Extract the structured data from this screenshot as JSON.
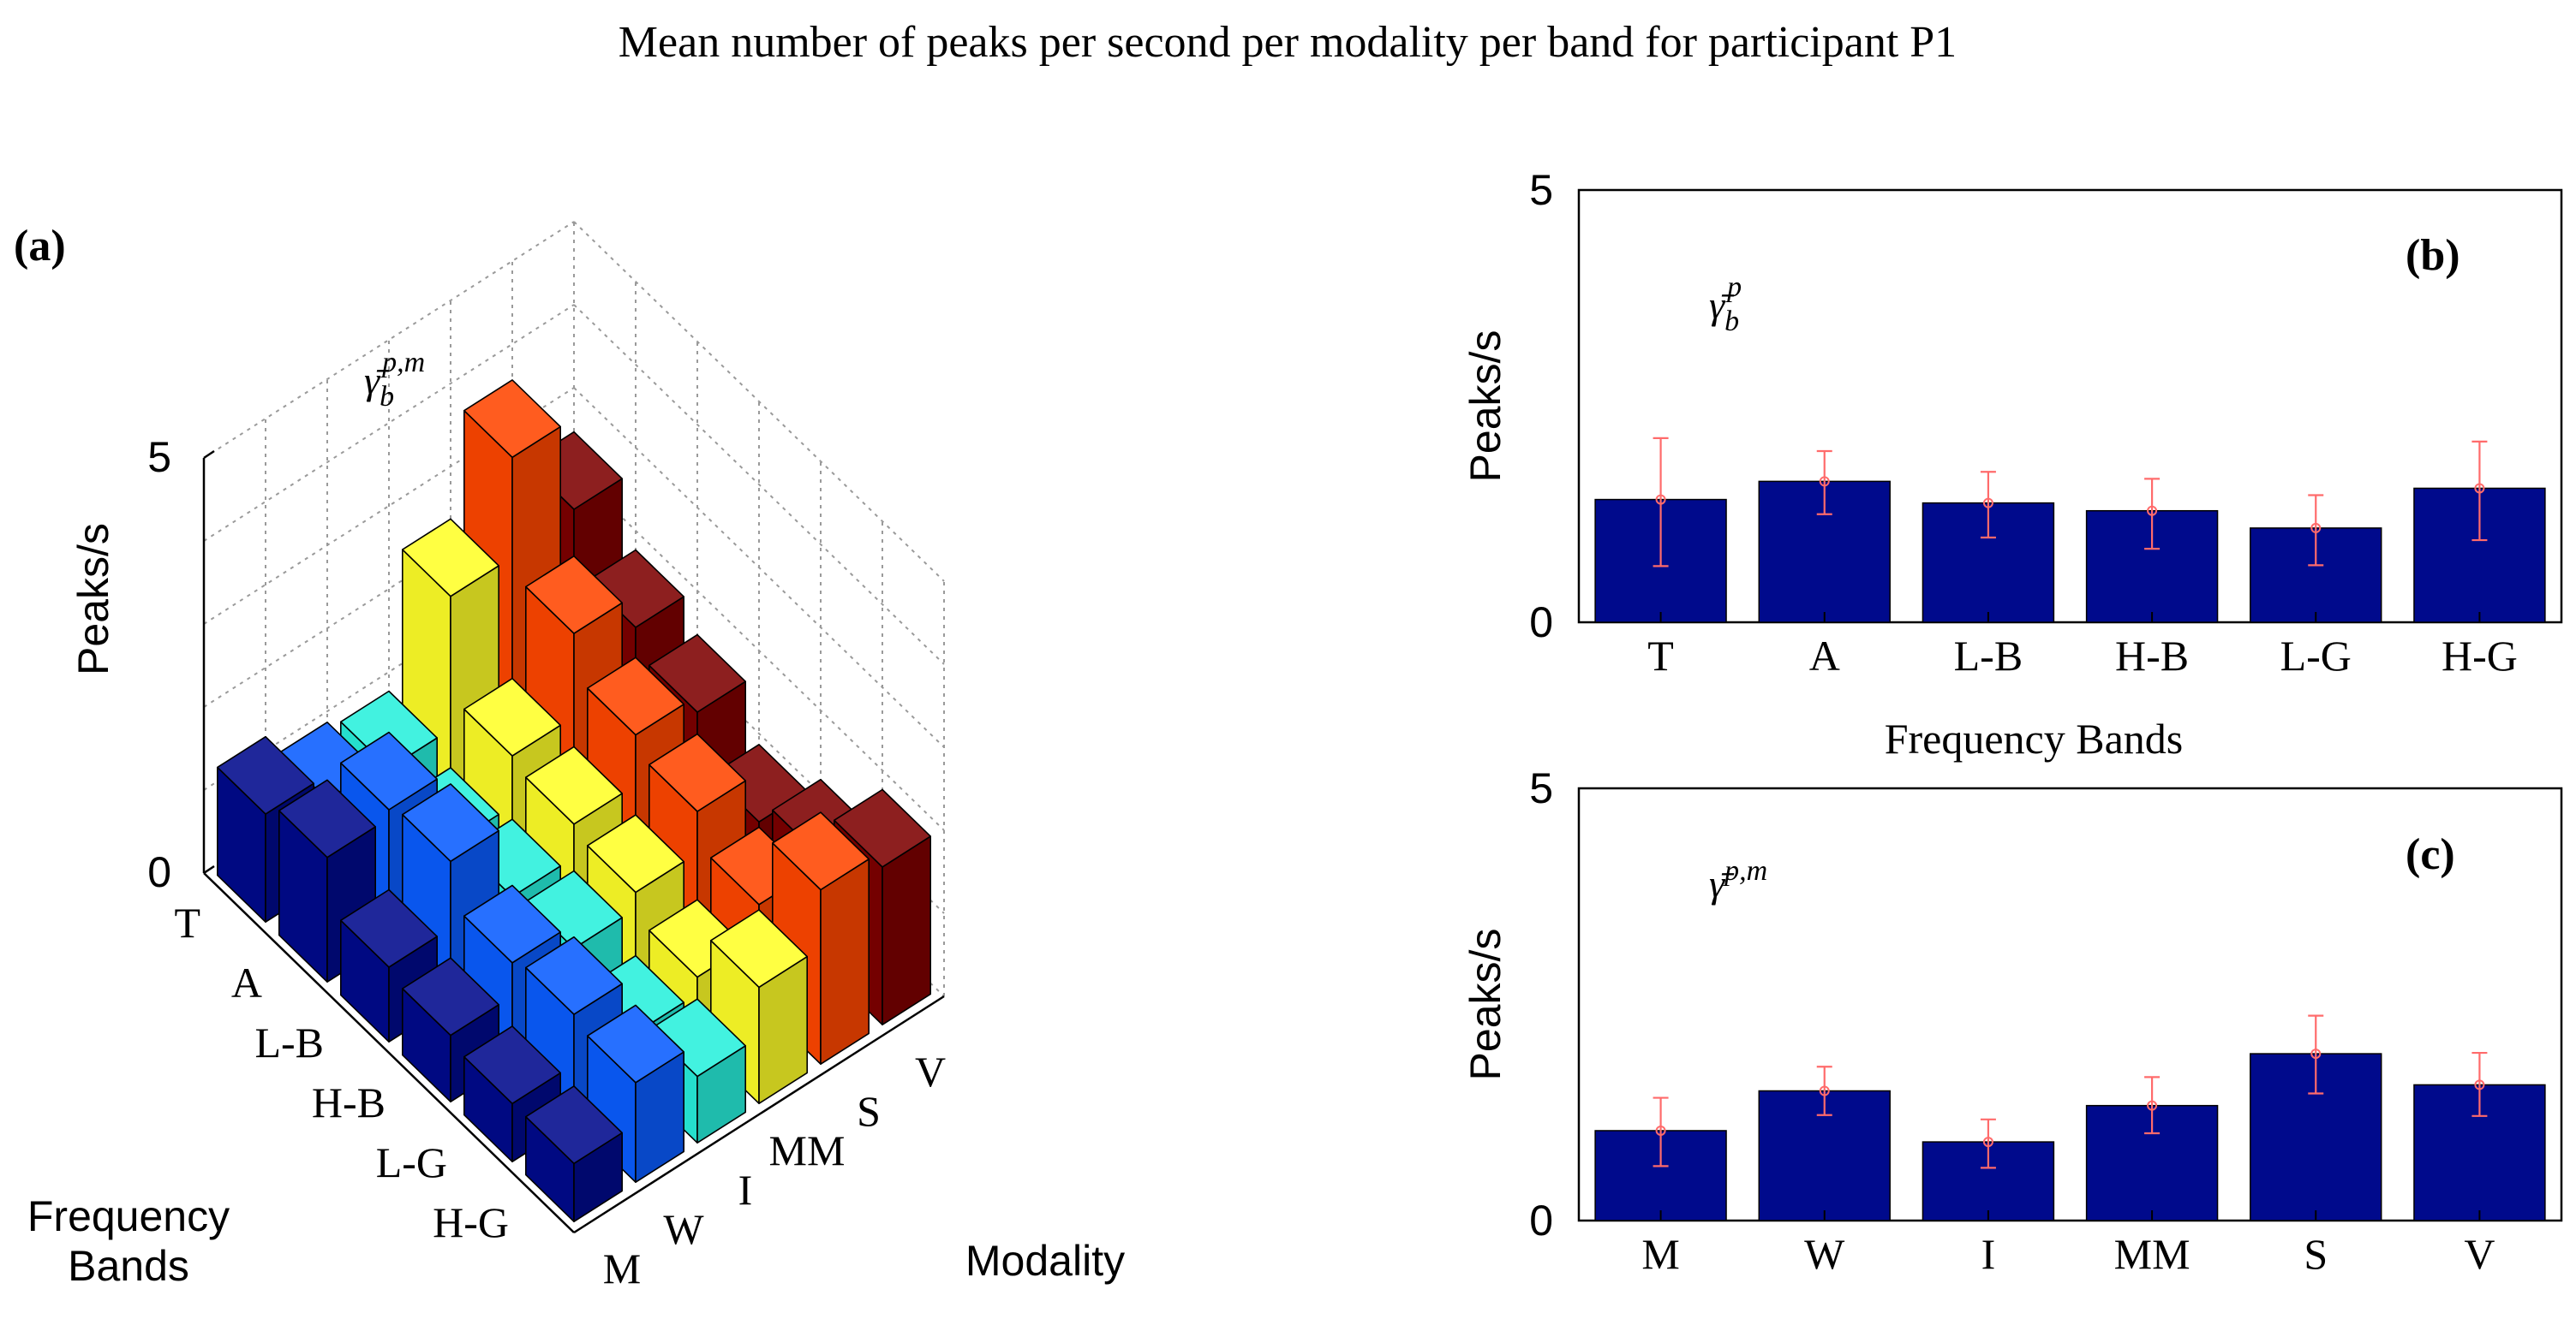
{
  "figure_title": "Mean number of peaks per second per modality per band for participant P1",
  "chart_data": [
    {
      "panel": "(a)",
      "type": "bar3d",
      "annotation": {
        "base": "γ̄",
        "sub": "b",
        "sup": "p,m"
      },
      "ylabel": "Peaks/s",
      "xlabel": "Frequency Bands",
      "zlabel": "Modality",
      "y_ticks": [
        0,
        5
      ],
      "ylim": [
        0,
        5
      ],
      "grid": true,
      "bands": [
        "T",
        "A",
        "L-B",
        "H-B",
        "L-G",
        "H-G"
      ],
      "modalities": [
        "M",
        "W",
        "I",
        "MM",
        "S",
        "V"
      ],
      "modality_colors": [
        "#000a8c",
        "#0a5cff",
        "#28f0dc",
        "#ffff28",
        "#ff4600",
        "#7d0000"
      ],
      "series": [
        {
          "name": "M",
          "values": [
            1.3,
            1.5,
            0.9,
            0.8,
            0.7,
            0.7
          ]
        },
        {
          "name": "W",
          "values": [
            1.0,
            1.6,
            1.7,
            1.2,
            1.3,
            1.2
          ]
        },
        {
          "name": "I",
          "values": [
            0.9,
            0.7,
            0.8,
            0.9,
            0.6,
            0.8
          ]
        },
        {
          "name": "MM",
          "values": [
            2.5,
            1.3,
            1.2,
            1.1,
            0.8,
            1.4
          ]
        },
        {
          "name": "S",
          "values": [
            3.7,
            2.3,
            1.8,
            1.6,
            1.2,
            2.1
          ]
        },
        {
          "name": "V",
          "values": [
            2.6,
            1.9,
            1.6,
            1.0,
            1.3,
            1.9
          ]
        }
      ]
    },
    {
      "panel": "(b)",
      "type": "bar",
      "annotation": {
        "base": "γ̄",
        "sub": "b",
        "sup": "p"
      },
      "ylabel": "Peaks/s",
      "xlabel": "Frequency Bands",
      "y_ticks": [
        0,
        5
      ],
      "ylim": [
        0,
        5
      ],
      "categories": [
        "T",
        "A",
        "L-B",
        "H-B",
        "L-G",
        "H-G"
      ],
      "values": [
        1.42,
        1.63,
        1.38,
        1.29,
        1.09,
        1.55
      ],
      "error": [
        [
          0.65,
          2.13
        ],
        [
          1.25,
          1.98
        ],
        [
          0.98,
          1.74
        ],
        [
          0.85,
          1.66
        ],
        [
          0.66,
          1.47
        ],
        [
          0.95,
          2.09
        ]
      ],
      "bar_color": "#000a8c",
      "error_color": "#ff6b6b"
    },
    {
      "panel": "(c)",
      "type": "bar",
      "annotation": {
        "base": "γ̄",
        "sub": "",
        "sup": "p,m"
      },
      "ylabel": "Peaks/s",
      "xlabel": "",
      "y_ticks": [
        0,
        5
      ],
      "ylim": [
        0,
        5
      ],
      "categories": [
        "M",
        "W",
        "I",
        "MM",
        "S",
        "V"
      ],
      "values": [
        1.04,
        1.5,
        0.91,
        1.33,
        1.93,
        1.57
      ],
      "error": [
        [
          0.63,
          1.42
        ],
        [
          1.22,
          1.78
        ],
        [
          0.61,
          1.17
        ],
        [
          1.01,
          1.66
        ],
        [
          1.47,
          2.37
        ],
        [
          1.21,
          1.94
        ]
      ],
      "bar_color": "#000a8c",
      "error_color": "#ff6b6b"
    }
  ]
}
